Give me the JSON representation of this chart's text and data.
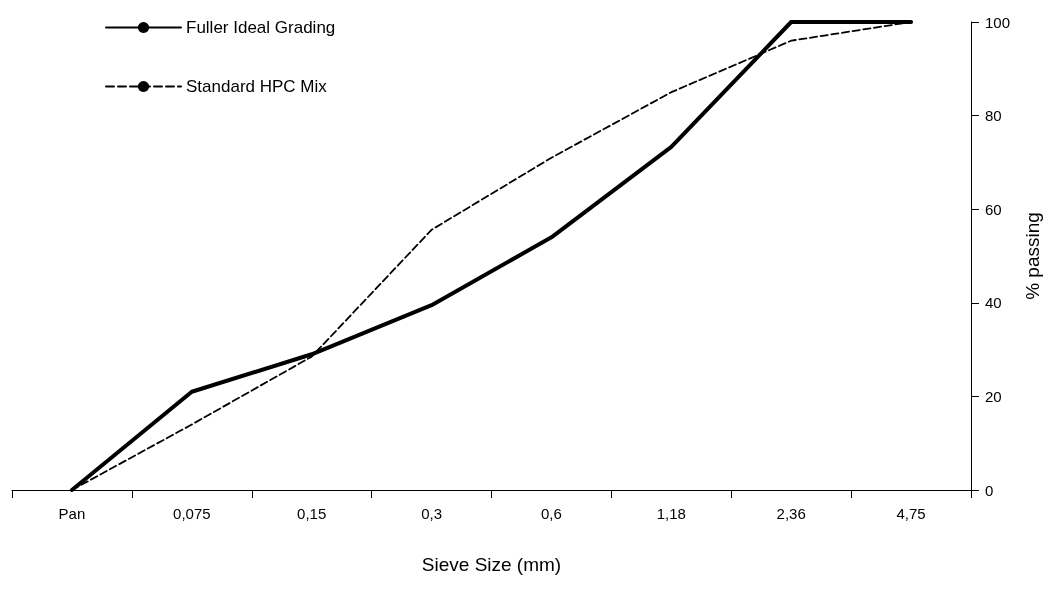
{
  "chart_data": {
    "type": "line",
    "xlabel": "Sieve Size (mm)",
    "ylabel": "% passing",
    "categories": [
      "Pan",
      "0,075",
      "0,15",
      "0,3",
      "0,6",
      "1,18",
      "2,36",
      "4,75"
    ],
    "series": [
      {
        "name": "Fuller Ideal Grading",
        "color": "#000000",
        "line_style": "solid",
        "values": [
          0,
          21,
          29,
          39.5,
          54,
          73.3,
          100,
          100
        ]
      },
      {
        "name": "Standard HPC Mix",
        "color": "#000000",
        "line_style": "dashed",
        "values": [
          0,
          14,
          28.5,
          55.6,
          71,
          85,
          96,
          100
        ]
      }
    ],
    "ylim": [
      0,
      100
    ],
    "yticks": [
      0,
      20,
      40,
      60,
      80,
      100
    ],
    "grid": false,
    "legend": "top left",
    "marker": "none"
  }
}
